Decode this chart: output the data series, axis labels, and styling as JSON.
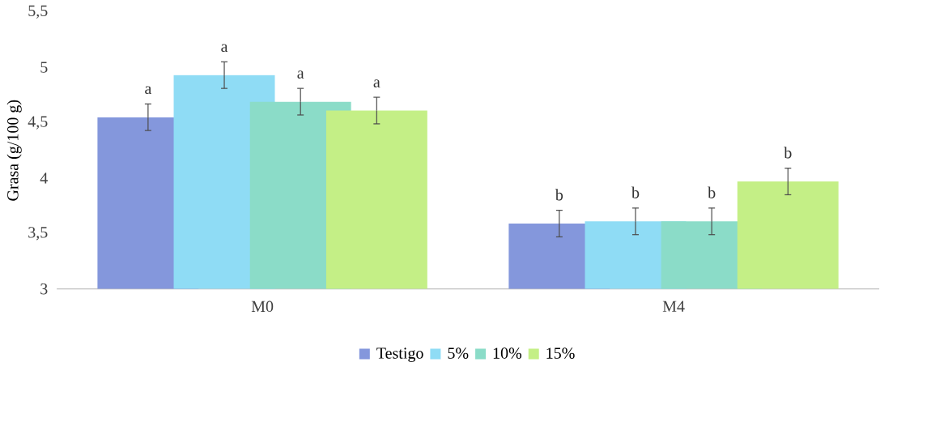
{
  "chart_data": {
    "type": "bar",
    "ylabel": "Grasa (g/100 g)",
    "categories": [
      "M0",
      "M4"
    ],
    "series": [
      {
        "name": "Testigo",
        "color": "#8497dc",
        "values": [
          4.55,
          3.59
        ],
        "errors": [
          0.12,
          0.12
        ],
        "value_labels": [
          "a",
          "b"
        ]
      },
      {
        "name": "5%",
        "color": "#8fdcf5",
        "values": [
          4.93,
          3.61
        ],
        "errors": [
          0.12,
          0.12
        ],
        "value_labels": [
          "a",
          "b"
        ]
      },
      {
        "name": "10%",
        "color": "#8bdcc8",
        "values": [
          4.69,
          3.61
        ],
        "errors": [
          0.12,
          0.12
        ],
        "value_labels": [
          "a",
          "b"
        ]
      },
      {
        "name": "15%",
        "color": "#c4ef86",
        "values": [
          4.61,
          3.97
        ],
        "errors": [
          0.12,
          0.12
        ],
        "value_labels": [
          "a",
          "b"
        ]
      }
    ],
    "ylim": [
      3,
      5.5
    ],
    "yticks": [
      3,
      {
        "value": 3.5,
        "label": "3,5"
      },
      4,
      {
        "value": 4.5,
        "label": "4,5"
      },
      5,
      {
        "value": 5.5,
        "label": "5,5"
      }
    ],
    "grid": false,
    "legend": "bottom"
  }
}
